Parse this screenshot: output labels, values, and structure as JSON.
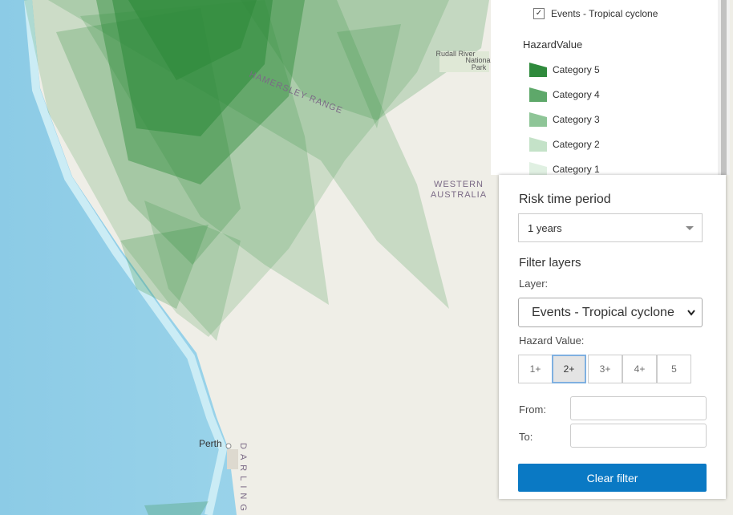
{
  "map": {
    "labels": {
      "range": "HAMERSLEY RANGE",
      "state_line1": "WESTERN",
      "state_line2": "AUSTRALIA",
      "park_line1": "Rudall River",
      "park_line2": "National",
      "park_line3": "Park",
      "city": "Perth",
      "darling": "DARLING"
    }
  },
  "legend": {
    "layer": "Events - Tropical cyclone",
    "field": "HazardValue",
    "items": [
      "Category 5",
      "Category 4",
      "Category 3",
      "Category 2",
      "Category 1"
    ]
  },
  "filter": {
    "risk_title": "Risk time period",
    "risk_value": "1 years",
    "filter_title": "Filter layers",
    "layer_label": "Layer:",
    "layer_value": "Events - Tropical cyclone",
    "hazard_label": "Hazard Value:",
    "hazard_buttons": [
      "1+",
      "2+",
      "3+",
      "4+",
      "5"
    ],
    "from_label": "From:",
    "to_label": "To:",
    "clear_button": "Clear filter"
  }
}
